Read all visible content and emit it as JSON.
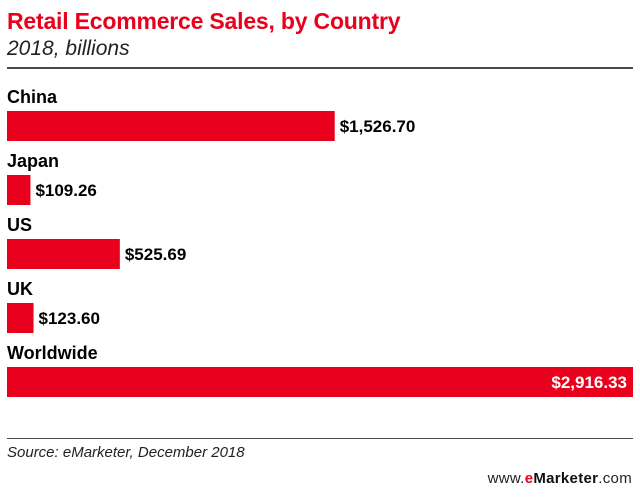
{
  "header": {
    "title": "Retail Ecommerce Sales, by Country",
    "subtitle": "2018, billions"
  },
  "footer": {
    "source": "Source: eMarketer, December 2018",
    "brand_prefix": "www.",
    "brand_e": "e",
    "brand_name": "Marketer",
    "brand_suffix": ".com"
  },
  "colors": {
    "bar": "#e8001c",
    "title": "#e8001c"
  },
  "chart_data": {
    "type": "bar",
    "orientation": "horizontal",
    "title": "Retail Ecommerce Sales, by Country",
    "subtitle": "2018, billions",
    "categories": [
      "China",
      "Japan",
      "US",
      "UK",
      "Worldwide"
    ],
    "values": [
      1526.7,
      109.26,
      525.69,
      123.6,
      2916.33
    ],
    "value_labels": [
      "$1,526.70",
      "$109.26",
      "$525.69",
      "$123.60",
      "$2,916.33"
    ],
    "xlim": [
      0,
      2916.33
    ],
    "grid": false,
    "legend": "none"
  }
}
